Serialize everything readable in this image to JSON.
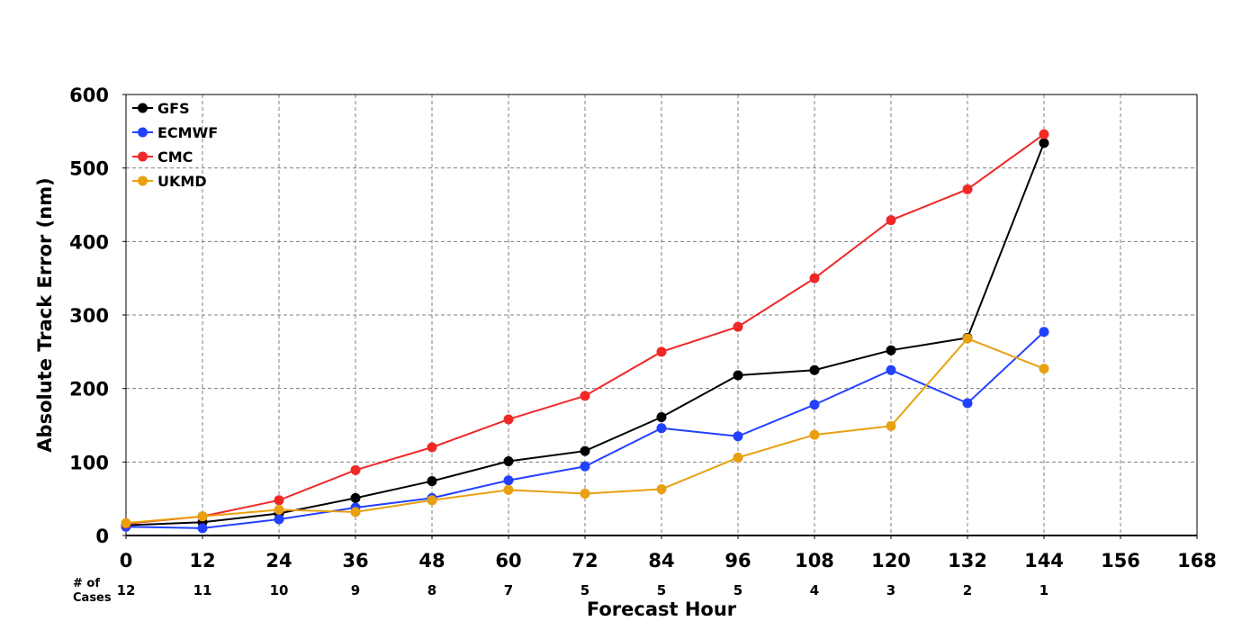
{
  "chart_data": {
    "type": "line",
    "title": "",
    "xlabel": "Forecast Hour",
    "ylabel": "Absolute Track Error (nm)",
    "xlim": [
      0,
      168
    ],
    "ylim": [
      0,
      600
    ],
    "x_ticks": [
      0,
      12,
      24,
      36,
      48,
      60,
      72,
      84,
      96,
      108,
      120,
      132,
      144,
      156,
      168
    ],
    "y_ticks": [
      0,
      100,
      200,
      300,
      400,
      500,
      600
    ],
    "grid": true,
    "legend_position": "top-left",
    "cases_header": [
      "# of",
      "Cases"
    ],
    "cases": [
      {
        "x": 0,
        "n": "12"
      },
      {
        "x": 12,
        "n": "11"
      },
      {
        "x": 24,
        "n": "10"
      },
      {
        "x": 36,
        "n": "9"
      },
      {
        "x": 48,
        "n": "8"
      },
      {
        "x": 60,
        "n": "7"
      },
      {
        "x": 72,
        "n": "5"
      },
      {
        "x": 84,
        "n": "5"
      },
      {
        "x": 96,
        "n": "5"
      },
      {
        "x": 108,
        "n": "4"
      },
      {
        "x": 120,
        "n": "3"
      },
      {
        "x": 132,
        "n": "2"
      },
      {
        "x": 144,
        "n": "1"
      }
    ],
    "x": [
      0,
      12,
      24,
      36,
      48,
      60,
      72,
      84,
      96,
      108,
      120,
      132,
      144
    ],
    "series": [
      {
        "name": "GFS",
        "color": "#000000",
        "values": [
          14,
          18,
          30,
          51,
          74,
          101,
          115,
          161,
          218,
          225,
          252,
          269,
          534
        ]
      },
      {
        "name": "ECMWF",
        "color": "#2140ff",
        "values": [
          12,
          10,
          22,
          38,
          51,
          75,
          94,
          146,
          135,
          178,
          225,
          180,
          277
        ]
      },
      {
        "name": "CMC",
        "color": "#f02828",
        "values": [
          16,
          26,
          48,
          89,
          120,
          158,
          190,
          250,
          284,
          350,
          429,
          471,
          546
        ]
      },
      {
        "name": "UKMD",
        "color": "#e8a010",
        "values": [
          17,
          26,
          35,
          32,
          48,
          62,
          57,
          63,
          106,
          137,
          149,
          268,
          227
        ]
      }
    ]
  }
}
